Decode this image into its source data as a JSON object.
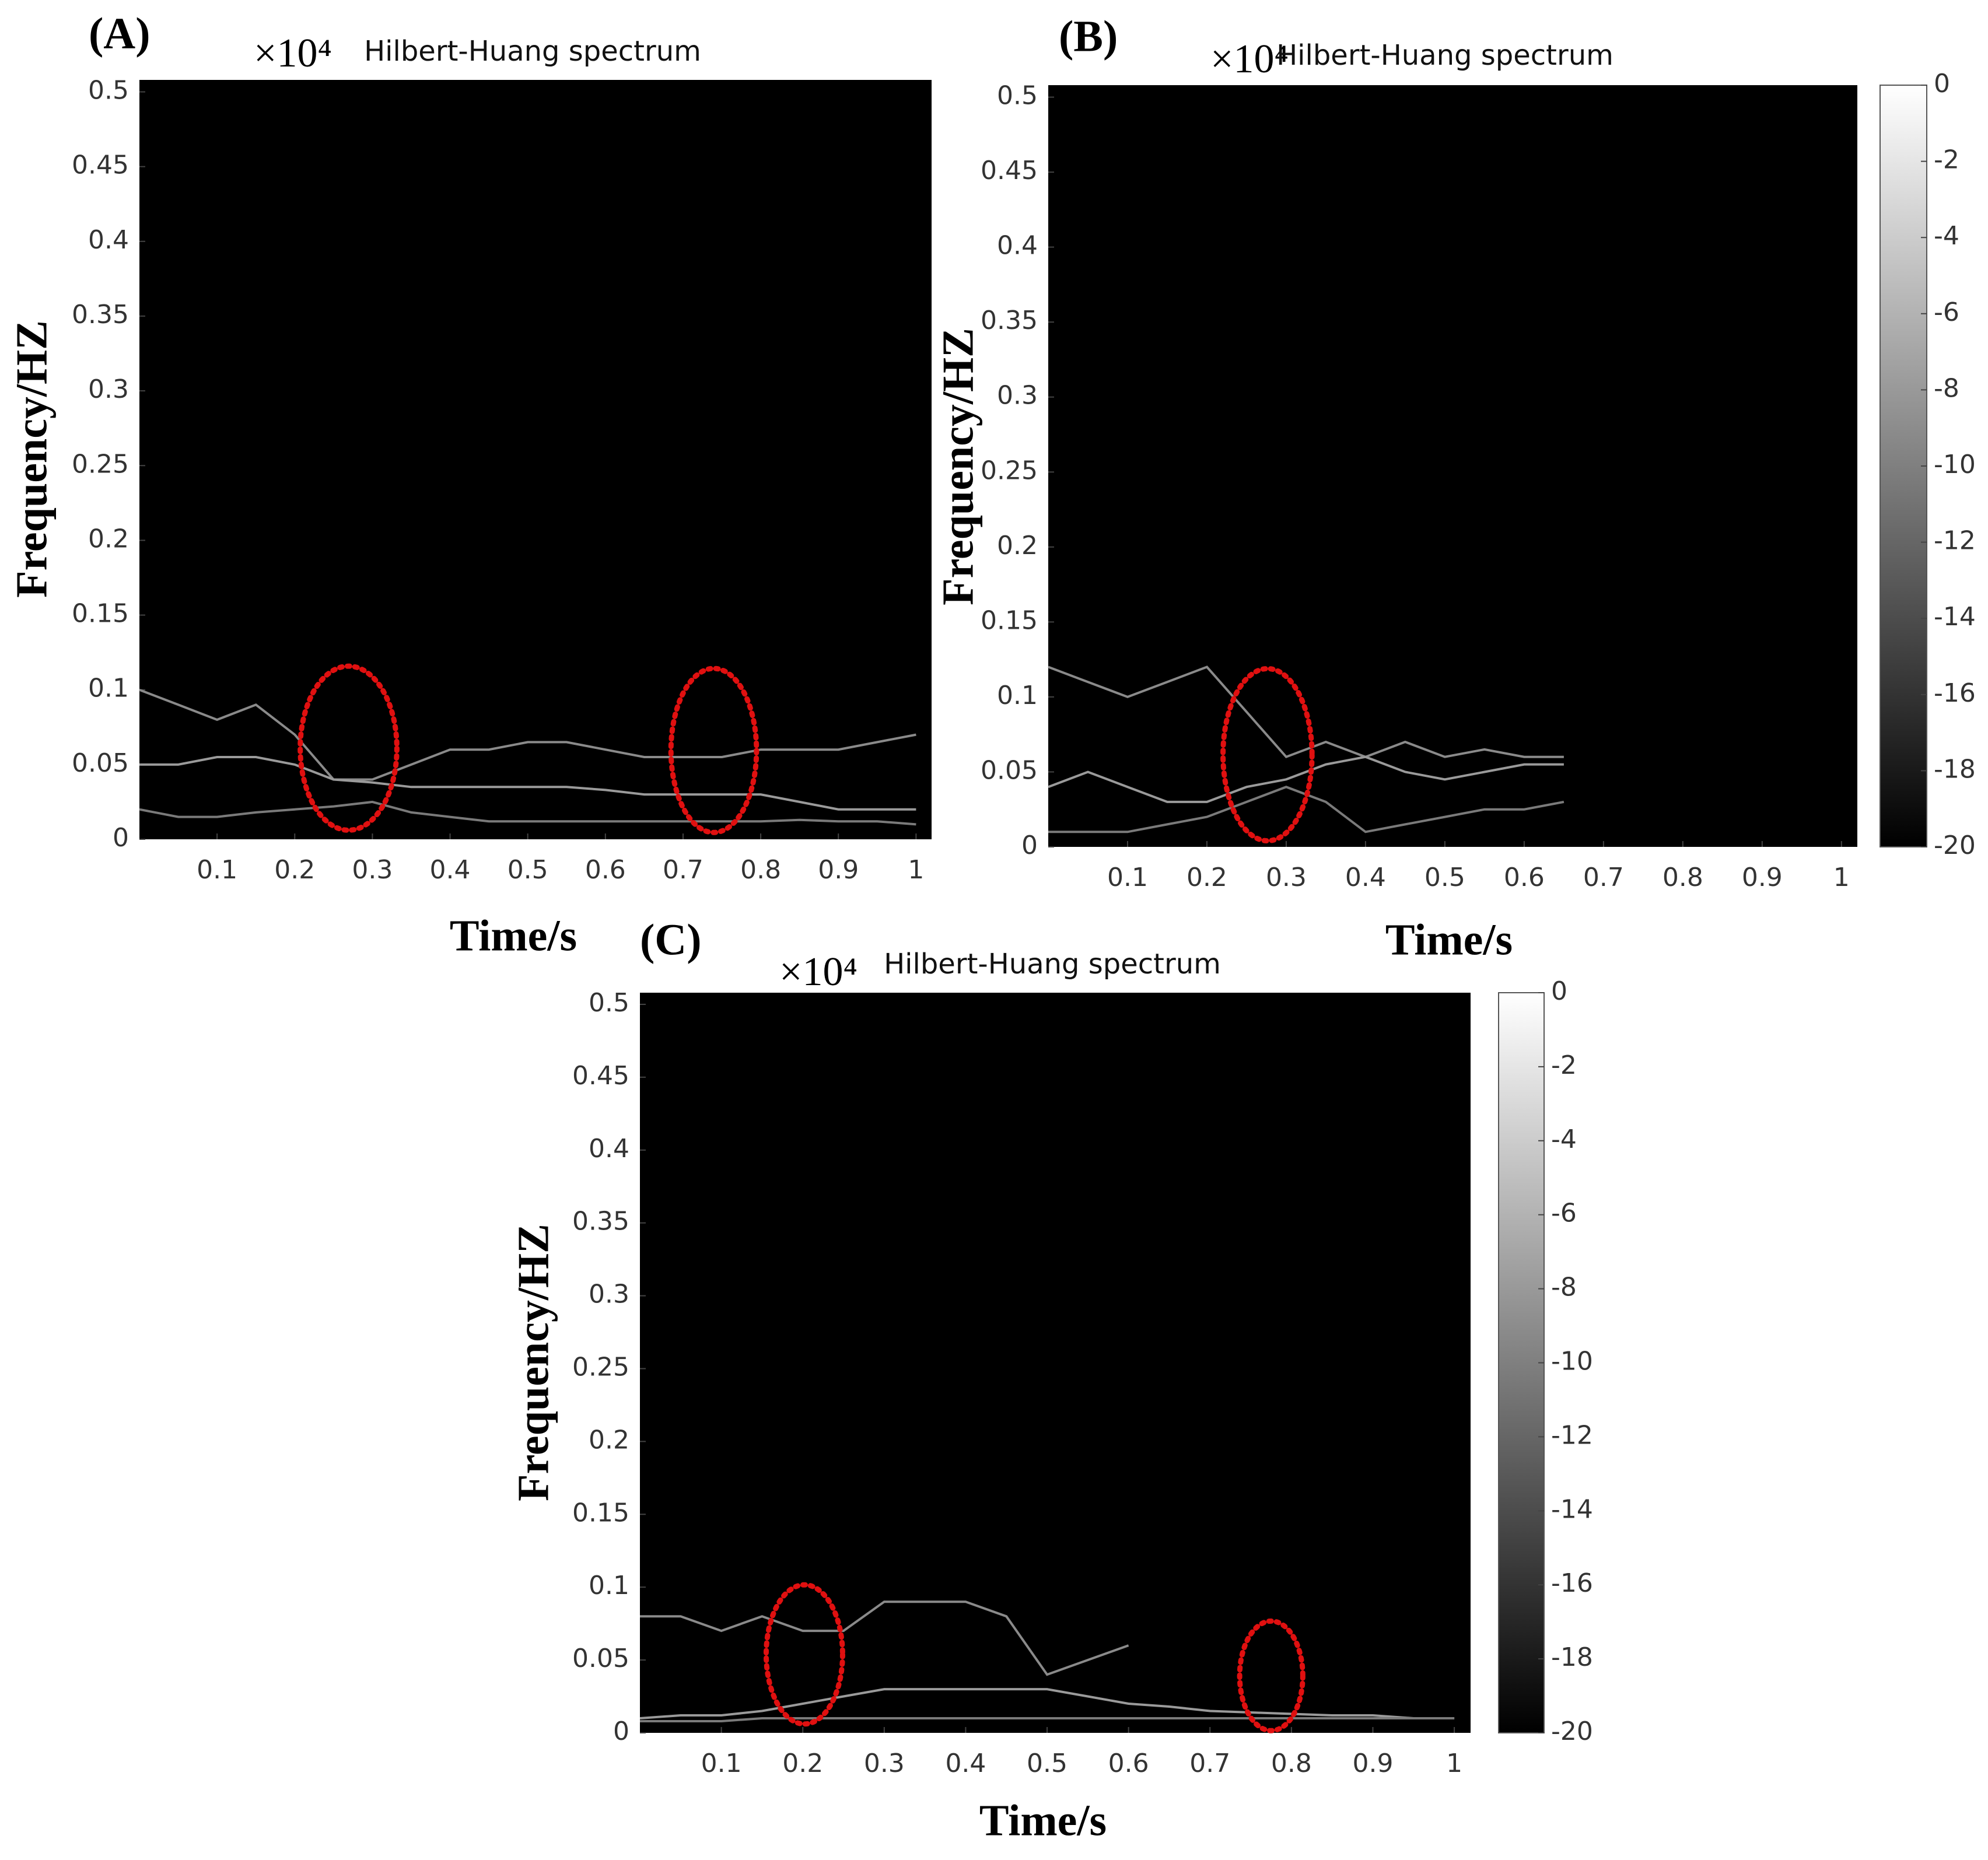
{
  "chart_data": [
    {
      "type": "line",
      "panel_label": "(A)",
      "title": "Hilbert-Huang spectrum",
      "y_multiplier": "×10⁴",
      "x_label": "Time/s",
      "y_label": "Frequency/HZ",
      "plot_background": "#000000",
      "xlim": [
        0,
        1.02
      ],
      "ylim": [
        0,
        0.508
      ],
      "xticks": [
        0.1,
        0.2,
        0.3,
        0.4,
        0.5,
        0.6,
        0.7,
        0.8,
        0.9,
        1
      ],
      "yticks": [
        0,
        0.05,
        0.1,
        0.15,
        0.2,
        0.25,
        0.3,
        0.35,
        0.4,
        0.45,
        0.5
      ],
      "x": [
        0,
        0.05,
        0.1,
        0.15,
        0.2,
        0.25,
        0.3,
        0.35,
        0.4,
        0.45,
        0.5,
        0.55,
        0.6,
        0.65,
        0.7,
        0.75,
        0.8,
        0.85,
        0.9,
        0.95,
        1
      ],
      "series": [
        {
          "color": "#8a8a8a",
          "values": [
            0.1,
            0.09,
            0.08,
            0.09,
            0.07,
            0.04,
            0.04,
            0.05,
            0.06,
            0.06,
            0.065,
            0.065,
            0.06,
            0.055,
            0.055,
            0.055,
            0.06,
            0.06,
            0.06,
            0.065,
            0.07
          ]
        },
        {
          "color": "#9a9a9a",
          "values": [
            0.05,
            0.05,
            0.055,
            0.055,
            0.05,
            0.04,
            0.038,
            0.035,
            0.035,
            0.035,
            0.035,
            0.035,
            0.033,
            0.03,
            0.03,
            0.03,
            0.03,
            0.025,
            0.02,
            0.02,
            0.02
          ]
        },
        {
          "color": "#7a7a7a",
          "values": [
            0.02,
            0.015,
            0.015,
            0.018,
            0.02,
            0.022,
            0.025,
            0.018,
            0.015,
            0.012,
            0.012,
            0.012,
            0.012,
            0.012,
            0.012,
            0.012,
            0.012,
            0.013,
            0.012,
            0.012,
            0.01
          ]
        }
      ]
    },
    {
      "type": "line",
      "panel_label": "(B)",
      "title": "Hilbert-Huang spectrum",
      "y_multiplier": "×10⁴",
      "x_label": "Time/s",
      "y_label": "Frequency/HZ",
      "plot_background": "#000000",
      "xlim": [
        0,
        1.02
      ],
      "ylim": [
        0,
        0.508
      ],
      "xticks": [
        0.1,
        0.2,
        0.3,
        0.4,
        0.5,
        0.6,
        0.7,
        0.8,
        0.9,
        1
      ],
      "yticks": [
        0,
        0.05,
        0.1,
        0.15,
        0.2,
        0.25,
        0.3,
        0.35,
        0.4,
        0.45,
        0.5
      ],
      "x": [
        0,
        0.05,
        0.1,
        0.15,
        0.2,
        0.25,
        0.3,
        0.35,
        0.4,
        0.45,
        0.5,
        0.55,
        0.6,
        0.65
      ],
      "series": [
        {
          "color": "#8a8a8a",
          "values": [
            0.12,
            0.11,
            0.1,
            0.11,
            0.12,
            0.09,
            0.06,
            0.07,
            0.06,
            0.07,
            0.06,
            0.065,
            0.06,
            0.06
          ]
        },
        {
          "color": "#9a9a9a",
          "values": [
            0.04,
            0.05,
            0.04,
            0.03,
            0.03,
            0.04,
            0.045,
            0.055,
            0.06,
            0.05,
            0.045,
            0.05,
            0.055,
            0.055
          ]
        },
        {
          "color": "#7a7a7a",
          "values": [
            0.01,
            0.01,
            0.01,
            0.015,
            0.02,
            0.03,
            0.04,
            0.03,
            0.01,
            0.015,
            0.02,
            0.025,
            0.025,
            0.03
          ]
        }
      ],
      "colorbar": {
        "colormap": "gray",
        "clim": [
          -20,
          0
        ],
        "ticks": [
          0,
          -2,
          -4,
          -6,
          -8,
          -10,
          -12,
          -14,
          -16,
          -18,
          -20
        ]
      }
    },
    {
      "type": "line",
      "panel_label": "(C)",
      "title": "Hilbert-Huang spectrum",
      "y_multiplier": "×10⁴",
      "x_label": "Time/s",
      "y_label": "Frequency/HZ",
      "plot_background": "#000000",
      "xlim": [
        0,
        1.02
      ],
      "ylim": [
        0,
        0.508
      ],
      "xticks": [
        0.1,
        0.2,
        0.3,
        0.4,
        0.5,
        0.6,
        0.7,
        0.8,
        0.9,
        1
      ],
      "yticks": [
        0,
        0.05,
        0.1,
        0.15,
        0.2,
        0.25,
        0.3,
        0.35,
        0.4,
        0.45,
        0.5
      ],
      "x": [
        0,
        0.05,
        0.1,
        0.15,
        0.2,
        0.25,
        0.3,
        0.35,
        0.4,
        0.45,
        0.5,
        0.55,
        0.6,
        0.65,
        0.7,
        0.75,
        0.8,
        0.85,
        0.9,
        0.95,
        1
      ],
      "series": [
        {
          "color": "#8a8a8a",
          "values": [
            0.08,
            0.08,
            0.07,
            0.08,
            0.07,
            0.07,
            0.09,
            0.09,
            0.09,
            0.08,
            0.04,
            0.05,
            0.06,
            null,
            null,
            null,
            null,
            null,
            null,
            null,
            null
          ]
        },
        {
          "color": "#9a9a9a",
          "values": [
            0.01,
            0.012,
            0.012,
            0.015,
            0.02,
            0.025,
            0.03,
            0.03,
            0.03,
            0.03,
            0.03,
            0.025,
            0.02,
            0.018,
            0.015,
            0.014,
            0.013,
            0.012,
            0.012,
            0.01,
            0.01
          ]
        },
        {
          "color": "#7a7a7a",
          "values": [
            0.008,
            0.008,
            0.008,
            0.01,
            0.01,
            0.01,
            0.01,
            0.01,
            0.01,
            0.01,
            0.01,
            0.01,
            0.01,
            0.01,
            0.01,
            0.01,
            0.01,
            0.01,
            0.01,
            0.01,
            0.01
          ]
        }
      ],
      "colorbar": {
        "colormap": "gray",
        "clim": [
          -20,
          0
        ],
        "ticks": [
          0,
          -2,
          -4,
          -6,
          -8,
          -10,
          -12,
          -14,
          -16,
          -18,
          -20
        ]
      }
    }
  ]
}
